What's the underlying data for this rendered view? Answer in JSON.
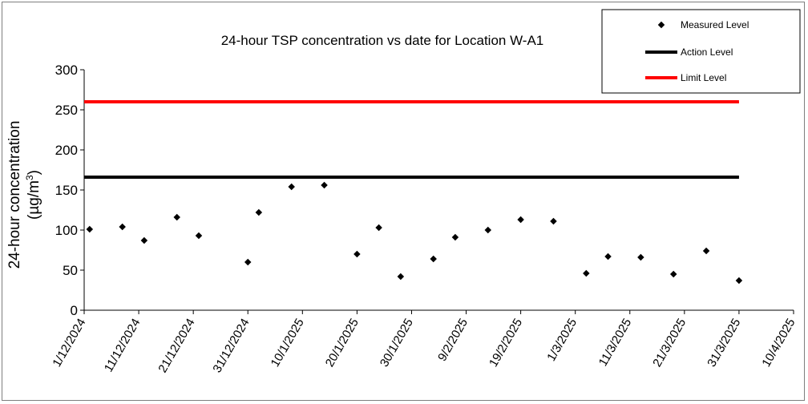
{
  "chart_data": {
    "type": "scatter",
    "title": "24-hour TSP concentration vs date for Location W-A1",
    "ylabel_line1": "24-hour concentration",
    "ylabel_line2_prefix": "(µg/m",
    "ylabel_line2_sup": "3",
    "ylabel_line2_suffix": ")",
    "xlabel": "",
    "ylim": [
      0,
      300
    ],
    "yticks": [
      0,
      50,
      100,
      150,
      200,
      250,
      300
    ],
    "xlim": [
      "2024-12-01",
      "2025-04-10"
    ],
    "xticks": [
      "1/12/2024",
      "11/12/2024",
      "21/12/2024",
      "31/12/2024",
      "10/1/2025",
      "20/1/2025",
      "30/1/2025",
      "9/2/2025",
      "19/2/2025",
      "1/3/2025",
      "11/3/2025",
      "21/3/2025",
      "31/3/2025",
      "10/4/2025"
    ],
    "grid": false,
    "legend": {
      "position": "top-right",
      "entries": [
        "Measured Level",
        "Action Level",
        "Limit Level"
      ]
    },
    "series": [
      {
        "name": "Measured Level",
        "type": "scatter",
        "color": "#000000",
        "x": [
          "2024-12-02",
          "2024-12-08",
          "2024-12-12",
          "2024-12-18",
          "2024-12-22",
          "2024-12-31",
          "2025-01-02",
          "2025-01-08",
          "2025-01-14",
          "2025-01-20",
          "2025-01-24",
          "2025-01-28",
          "2025-02-03",
          "2025-02-07",
          "2025-02-13",
          "2025-02-19",
          "2025-02-25",
          "2025-03-03",
          "2025-03-07",
          "2025-03-13",
          "2025-03-19",
          "2025-03-25",
          "2025-03-31"
        ],
        "y": [
          101,
          104,
          87,
          116,
          93,
          60,
          122,
          154,
          156,
          70,
          103,
          42,
          64,
          91,
          100,
          113,
          111,
          46,
          67,
          66,
          45,
          74,
          37
        ]
      },
      {
        "name": "Action Level",
        "type": "line",
        "color": "#000000",
        "x": [
          "2024-12-01",
          "2025-03-31"
        ],
        "y": [
          166,
          166
        ]
      },
      {
        "name": "Limit Level",
        "type": "line",
        "color": "#ff0000",
        "x": [
          "2024-12-01",
          "2025-03-31"
        ],
        "y": [
          260,
          260
        ]
      }
    ]
  }
}
